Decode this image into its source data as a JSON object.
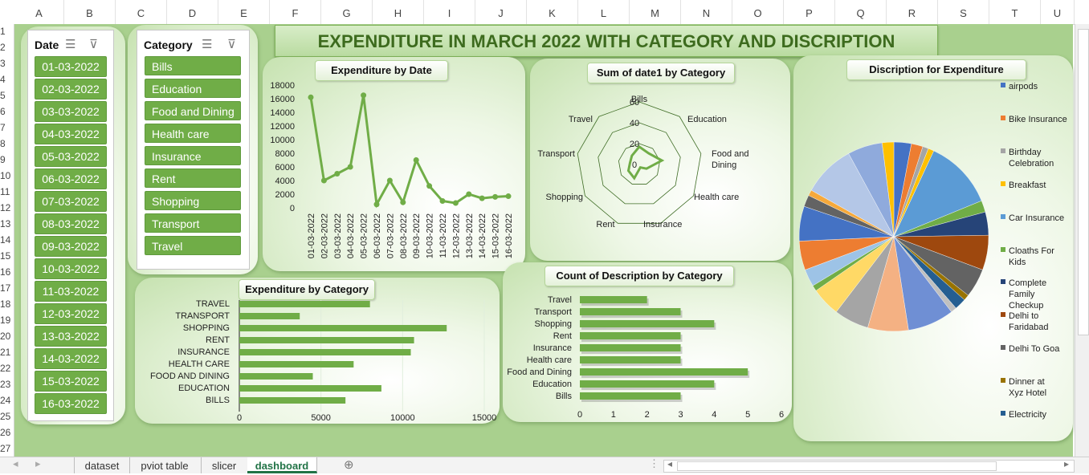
{
  "columns": [
    "A",
    "B",
    "C",
    "D",
    "E",
    "F",
    "G",
    "H",
    "I",
    "J",
    "K",
    "L",
    "M",
    "N",
    "O",
    "P",
    "Q",
    "R",
    "S",
    "T",
    "U"
  ],
  "rows": [
    "1",
    "2",
    "3",
    "4",
    "5",
    "6",
    "7",
    "8",
    "9",
    "10",
    "11",
    "12",
    "13",
    "14",
    "15",
    "16",
    "17",
    "18",
    "19",
    "20",
    "21",
    "22",
    "23",
    "24",
    "25",
    "26",
    "27"
  ],
  "dashboard_title": "EXPENDITURE IN MARCH 2022 WITH CATEGORY AND DISCRIPTION",
  "date_slicer": {
    "title": "Date",
    "items": [
      "01-03-2022",
      "02-03-2022",
      "03-03-2022",
      "04-03-2022",
      "05-03-2022",
      "06-03-2022",
      "07-03-2022",
      "08-03-2022",
      "09-03-2022",
      "10-03-2022",
      "11-03-2022",
      "12-03-2022",
      "13-03-2022",
      "14-03-2022",
      "15-03-2022",
      "16-03-2022"
    ]
  },
  "category_slicer": {
    "title": "Category",
    "items": [
      "Bills",
      "Education",
      "Food and Dining",
      "Health care",
      "Insurance",
      "Rent",
      "Shopping",
      "Transport",
      "Travel"
    ]
  },
  "sheet_tabs": [
    "dataset",
    "pviot table",
    "slicer",
    "dashboard"
  ],
  "active_tab": "dashboard",
  "colors": {
    "sheet_bg": "#a9d08e",
    "accent": "#70ad47",
    "excel_green": "#217346"
  },
  "chart_data": [
    {
      "id": "line",
      "type": "line",
      "title": "Expenditure by Date",
      "x": [
        "01-03-2022",
        "02-03-2022",
        "03-03-2022",
        "04-03-2022",
        "05-03-2022",
        "06-03-2022",
        "07-03-2022",
        "08-03-2022",
        "09-03-2022",
        "10-03-2022",
        "11-03-2022",
        "12-03-2022",
        "13-03-2022",
        "14-03-2022",
        "15-03-2022",
        "16-03-2022"
      ],
      "values": [
        16200,
        4000,
        5000,
        6000,
        16500,
        500,
        4000,
        800,
        7000,
        3200,
        1000,
        700,
        2000,
        1400,
        1600,
        1700
      ],
      "yticks": [
        0,
        2000,
        4000,
        6000,
        8000,
        10000,
        12000,
        14000,
        16000,
        18000
      ],
      "ylim": [
        0,
        18000
      ],
      "color": "#70ad47"
    },
    {
      "id": "radar",
      "type": "radar",
      "title": "Sum of date1 by Category",
      "categories": [
        "Bills",
        "Education",
        "Food and Dining",
        "Health care",
        "Insurance",
        "Rent",
        "Shopping",
        "Transport",
        "Travel"
      ],
      "values": [
        17,
        14,
        22,
        8,
        3,
        14,
        12,
        9,
        11
      ],
      "rings": [
        0,
        20,
        40,
        60
      ],
      "color": "#70ad47"
    },
    {
      "id": "pie",
      "type": "pie",
      "title": "Discription for Expenditure",
      "legend": [
        "airpods",
        "Bike Insurance",
        "Birthday Celebration",
        "Breakfast",
        "Car Insurance",
        "Cloaths For Kids",
        "Complete Family Checkup",
        "Delhi to Faridabad",
        "Delhi To Goa",
        "Dinner at Xyz Hotel",
        "Electricity"
      ],
      "legend_colors": [
        "#4472c4",
        "#ed7d31",
        "#a5a5a5",
        "#ffc000",
        "#5b9bd5",
        "#70ad47",
        "#264478",
        "#9e480e",
        "#636363",
        "#997300",
        "#255e91"
      ],
      "values": [
        3,
        2,
        1,
        1,
        12,
        2,
        4,
        6,
        5,
        1,
        2,
        1,
        8,
        7,
        6,
        5,
        1,
        3,
        5,
        6,
        2,
        1,
        9,
        6,
        2
      ],
      "colors": [
        "#4472c4",
        "#ed7d31",
        "#a5a5a5",
        "#ffc000",
        "#5b9bd5",
        "#70ad47",
        "#264478",
        "#9e480e",
        "#636363",
        "#997300",
        "#255e91",
        "#c0c0c0",
        "#6f8fd4",
        "#f4b183",
        "#a5a5a5",
        "#ffd966",
        "#70ad47",
        "#9dc3e6",
        "#ed7d31",
        "#4472c4",
        "#636363",
        "#f6a93b",
        "#b4c7e7",
        "#8faadc",
        "#ffc000"
      ]
    },
    {
      "id": "hbar",
      "type": "bar",
      "title": "Expenditure by Category",
      "categories": [
        "TRAVEL",
        "TRANSPORT",
        "SHOPPING",
        "RENT",
        "INSURANCE",
        "HEALTH CARE",
        "FOOD AND DINING",
        "EDUCATION",
        "BILLS"
      ],
      "values": [
        8000,
        3700,
        12700,
        10700,
        10500,
        7000,
        4500,
        8700,
        6500
      ],
      "xticks": [
        0,
        5000,
        10000,
        15000
      ],
      "xlim": [
        0,
        15000
      ],
      "color": "#70ad47"
    },
    {
      "id": "countbar",
      "type": "bar",
      "title": "Count of Description by Category",
      "categories": [
        "Travel",
        "Transport",
        "Shopping",
        "Rent",
        "Insurance",
        "Health care",
        "Food and Dining",
        "Education",
        "Bills"
      ],
      "values": [
        2,
        3,
        4,
        3,
        3,
        3,
        5,
        4,
        3
      ],
      "xticks": [
        0,
        1,
        2,
        3,
        4,
        5,
        6
      ],
      "xlim": [
        0,
        6
      ],
      "color": "#70ad47"
    }
  ]
}
